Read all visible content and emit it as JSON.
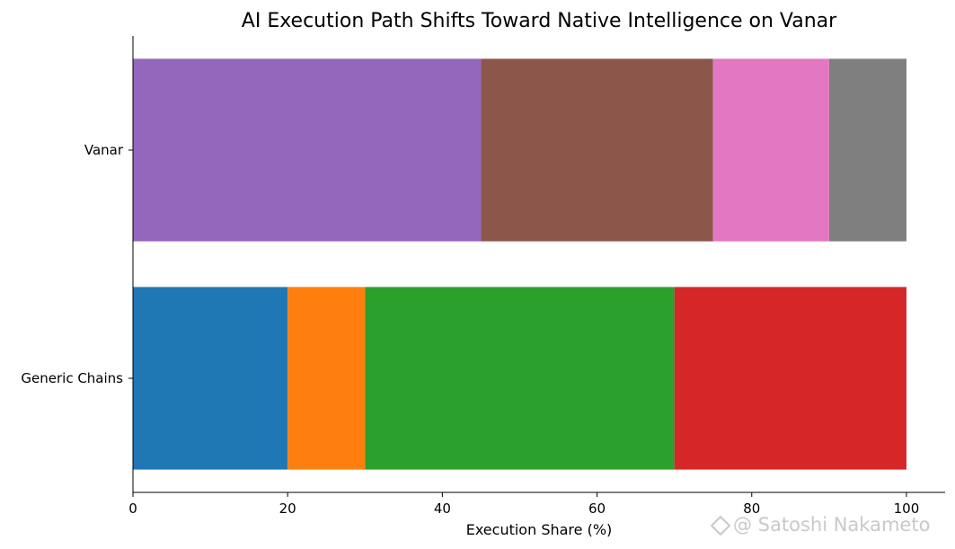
{
  "chart_data": {
    "type": "bar",
    "orientation": "horizontal",
    "stacked": true,
    "title": "AI Execution Path Shifts Toward Native Intelligence on Vanar",
    "xlabel": "Execution Share (%)",
    "ylabel": "",
    "xlim": [
      0,
      105
    ],
    "xticks": [
      0,
      20,
      40,
      60,
      80,
      100
    ],
    "grid": false,
    "legend": "none",
    "categories": [
      "Generic Chains",
      "Vanar"
    ],
    "series": [
      {
        "color": "#1f77b4",
        "values": [
          20,
          0
        ]
      },
      {
        "color": "#ff7f0e",
        "values": [
          10,
          0
        ]
      },
      {
        "color": "#2ca02c",
        "values": [
          40,
          0
        ]
      },
      {
        "color": "#d62728",
        "values": [
          30,
          0
        ]
      },
      {
        "color": "#9467bd",
        "values": [
          0,
          45
        ]
      },
      {
        "color": "#8c564b",
        "values": [
          0,
          30
        ]
      },
      {
        "color": "#e377c2",
        "values": [
          0,
          15
        ]
      },
      {
        "color": "#7f7f7f",
        "values": [
          0,
          10
        ]
      }
    ]
  },
  "watermark": {
    "text": "@ Satoshi Nakameto",
    "icon": "diamond-logo-icon"
  }
}
